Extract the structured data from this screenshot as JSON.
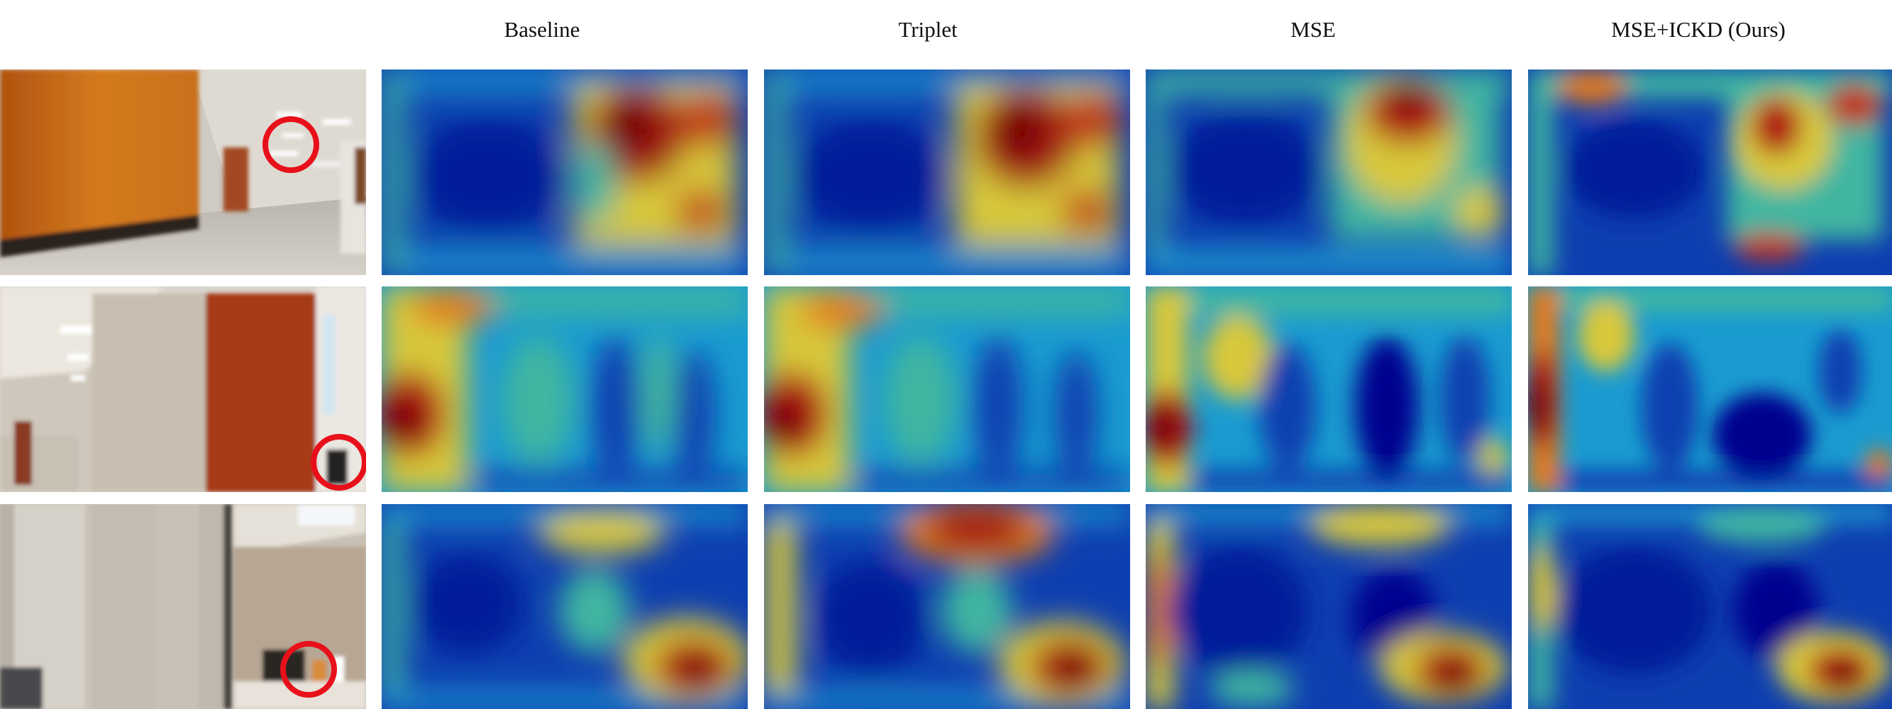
{
  "figure": {
    "columns": [
      {
        "key": "input",
        "label": ""
      },
      {
        "key": "baseline",
        "label": "Baseline"
      },
      {
        "key": "triplet",
        "label": "Triplet"
      },
      {
        "key": "mse",
        "label": "MSE"
      },
      {
        "key": "mse_ickd",
        "label": "MSE+ICKD (Ours)"
      }
    ],
    "rows": [
      {
        "scene": "corridor-with-orange-wall",
        "highlight": "ceiling-lights"
      },
      {
        "scene": "corridor-with-red-door",
        "highlight": "dark-object-by-door"
      },
      {
        "scene": "office-with-pillars",
        "highlight": "microwave-on-counter"
      }
    ],
    "highlight_color": "#e8101a",
    "heatmap_palette": [
      "#00008f",
      "#0047c8",
      "#1a9bd0",
      "#3fb6a0",
      "#d8c83a",
      "#e07a1a",
      "#b01414",
      "#6e0000"
    ]
  }
}
